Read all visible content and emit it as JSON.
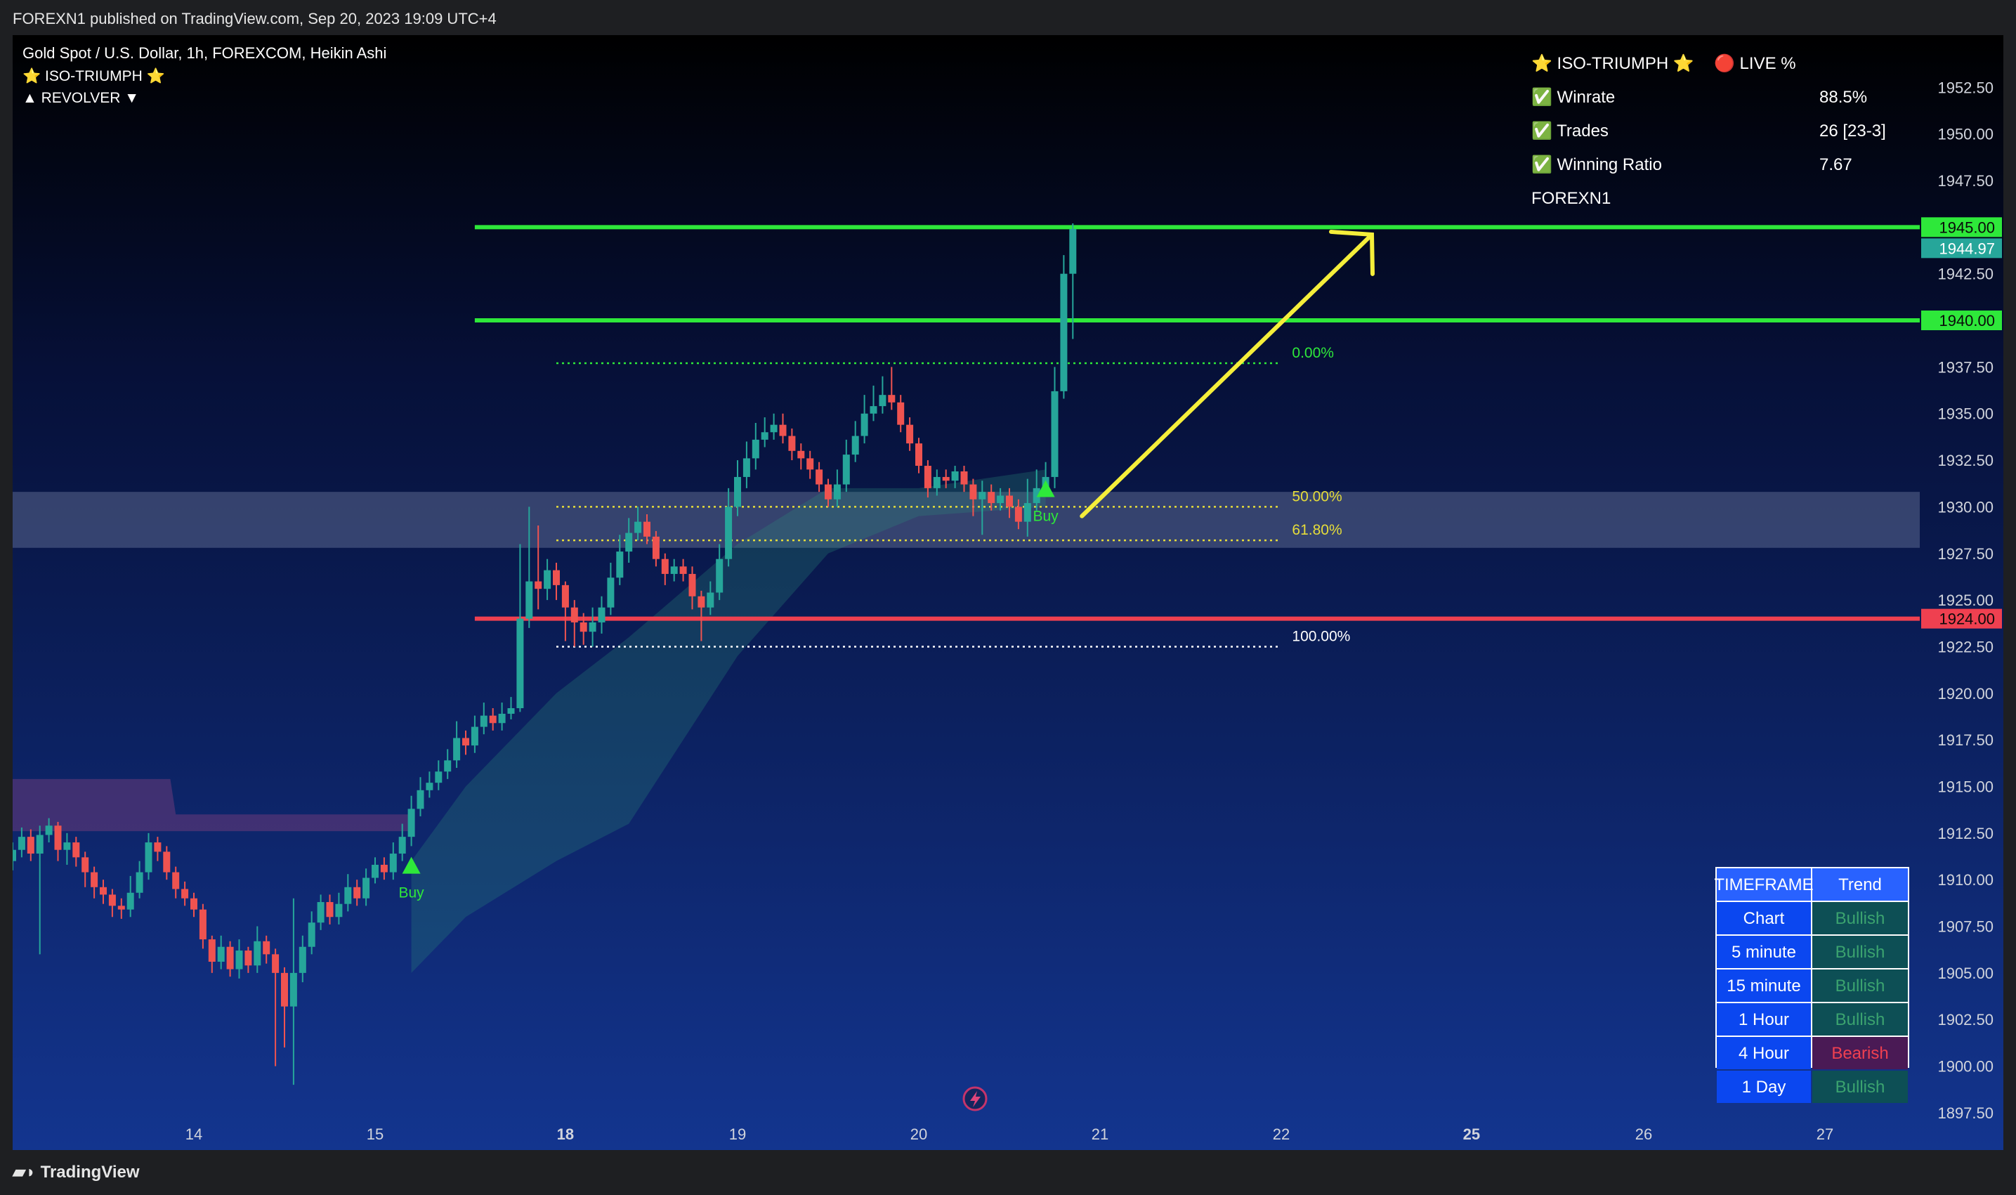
{
  "header": {
    "publish_line": "FOREXN1 published on TradingView.com, Sep 20, 2023 19:09 UTC+4"
  },
  "legend": {
    "symbol_line": "Gold Spot / U.S. Dollar, 1h, FOREXCOM, Heikin Ashi",
    "indicator1": "⭐ ISO-TRIUMPH ⭐",
    "indicator2": "▲ REVOLVER ▼"
  },
  "stats_panel": {
    "title": "⭐ ISO-TRIUMPH ⭐",
    "live": "🔴 LIVE %",
    "rows": [
      {
        "label": "✅ Winrate",
        "value": "88.5%"
      },
      {
        "label": "✅ Trades",
        "value": "26 [23-3]"
      },
      {
        "label": "✅ Winning Ratio",
        "value": "7.67"
      }
    ],
    "author": "FOREXN1"
  },
  "trend_table": {
    "headers": [
      "TIMEFRAME",
      "Trend"
    ],
    "rows": [
      {
        "tf": "Chart",
        "trend": "Bullish"
      },
      {
        "tf": "5 minute",
        "trend": "Bullish"
      },
      {
        "tf": "15 minute",
        "trend": "Bullish"
      },
      {
        "tf": "1 Hour",
        "trend": "Bullish"
      },
      {
        "tf": "4 Hour",
        "trend": "Bearish"
      },
      {
        "tf": "1 Day",
        "trend": "Bullish"
      }
    ]
  },
  "chart_data": {
    "type": "candlestick",
    "symbol": "Gold Spot / U.S. Dollar",
    "timeframe": "1h",
    "chart_style": "Heikin Ashi",
    "ylim": [
      1895.5,
      1955
    ],
    "y_ticks": [
      1897.5,
      1900,
      1902.5,
      1905,
      1907.5,
      1910,
      1912.5,
      1915,
      1917.5,
      1920,
      1922.5,
      1925,
      1927.5,
      1930,
      1932.5,
      1935,
      1937.5,
      1940,
      1942.5,
      1945,
      1947.5,
      1950,
      1952.5
    ],
    "x_ticks": [
      {
        "label": "14",
        "day": 14,
        "bold": false
      },
      {
        "label": "15",
        "day": 15,
        "bold": false
      },
      {
        "label": "18",
        "day": 16.05,
        "bold": true
      },
      {
        "label": "19",
        "day": 17,
        "bold": false
      },
      {
        "label": "20",
        "day": 18,
        "bold": false
      },
      {
        "label": "21",
        "day": 19,
        "bold": false
      },
      {
        "label": "22",
        "day": 20,
        "bold": false
      },
      {
        "label": "25",
        "day": 21.05,
        "bold": true
      },
      {
        "label": "26",
        "day": 22,
        "bold": false
      },
      {
        "label": "27",
        "day": 23,
        "bold": false
      }
    ],
    "price_levels": [
      {
        "price": 1945.0,
        "label": "1945.00",
        "color": "#2ee83a",
        "line": true,
        "x_start_day": 15.55
      },
      {
        "price": 1944.97,
        "label": "1944.97",
        "color": "#26a69a",
        "line": false
      },
      {
        "price": 1940.0,
        "label": "1940.00",
        "color": "#2ee83a",
        "line": true,
        "x_start_day": 15.55
      },
      {
        "price": 1924.0,
        "label": "1924.00",
        "color": "#ef4050",
        "line": true,
        "x_start_day": 15.55
      }
    ],
    "fib_levels": [
      {
        "ratio": "0.00%",
        "price": 1937.7,
        "color": "#2ee83a"
      },
      {
        "ratio": "50.00%",
        "price": 1930.0,
        "color": "#e6dd3a"
      },
      {
        "ratio": "61.80%",
        "price": 1928.2,
        "color": "#e6dd3a"
      },
      {
        "ratio": "100.00%",
        "price": 1922.5,
        "color": "#ffffff"
      }
    ],
    "fib_x_range": [
      16.0,
      19.99
    ],
    "zone": {
      "low": 1927.8,
      "high": 1930.8,
      "color": "#8a95b8"
    },
    "signals": [
      {
        "type": "Buy",
        "day": 15.2,
        "price": 1910.7
      },
      {
        "type": "Buy",
        "day": 18.7,
        "price": 1930.9
      }
    ],
    "arrow": {
      "from": {
        "day": 18.9,
        "price": 1929.5
      },
      "to": {
        "day": 20.5,
        "price": 1944.6
      },
      "color": "#f5ee3a"
    },
    "cloud_purple": [
      {
        "day": 13.0,
        "top": 1915.4,
        "bottom": 1912.6
      },
      {
        "day": 13.87,
        "top": 1915.4,
        "bottom": 1912.6
      },
      {
        "day": 13.9,
        "top": 1913.5,
        "bottom": 1912.6
      },
      {
        "day": 15.2,
        "top": 1913.5,
        "bottom": 1912.6
      }
    ],
    "cloud_teal": [
      {
        "day": 15.2,
        "top": 1911,
        "bottom": 1905
      },
      {
        "day": 15.5,
        "top": 1915,
        "bottom": 1908
      },
      {
        "day": 16.0,
        "top": 1920,
        "bottom": 1911
      },
      {
        "day": 16.4,
        "top": 1923,
        "bottom": 1913
      },
      {
        "day": 17.0,
        "top": 1928,
        "bottom": 1922
      },
      {
        "day": 17.5,
        "top": 1931,
        "bottom": 1927.5
      },
      {
        "day": 18.0,
        "top": 1931,
        "bottom": 1929.5
      },
      {
        "day": 18.7,
        "top": 1932,
        "bottom": 1930
      }
    ],
    "candles": [
      {
        "d": 13.0,
        "o": 1911.0,
        "c": 1911.6,
        "h": 1912.0,
        "l": 1910.5
      },
      {
        "d": 13.05,
        "o": 1911.6,
        "c": 1912.3,
        "h": 1912.8,
        "l": 1911.2
      },
      {
        "d": 13.1,
        "o": 1912.3,
        "c": 1911.4,
        "h": 1912.7,
        "l": 1911.0
      },
      {
        "d": 13.15,
        "o": 1911.4,
        "c": 1912.4,
        "h": 1912.9,
        "l": 1906.0
      },
      {
        "d": 13.2,
        "o": 1912.4,
        "c": 1912.9,
        "h": 1913.3,
        "l": 1912.0
      },
      {
        "d": 13.25,
        "o": 1912.9,
        "c": 1911.6,
        "h": 1913.1,
        "l": 1911.0
      },
      {
        "d": 13.3,
        "o": 1911.6,
        "c": 1912.0,
        "h": 1912.5,
        "l": 1910.8
      },
      {
        "d": 13.35,
        "o": 1912.0,
        "c": 1911.2,
        "h": 1912.3,
        "l": 1910.7
      },
      {
        "d": 13.4,
        "o": 1911.2,
        "c": 1910.4,
        "h": 1911.5,
        "l": 1909.6
      },
      {
        "d": 13.45,
        "o": 1910.4,
        "c": 1909.6,
        "h": 1910.7,
        "l": 1909.0
      },
      {
        "d": 13.5,
        "o": 1909.6,
        "c": 1909.2,
        "h": 1910.0,
        "l": 1908.7
      },
      {
        "d": 13.55,
        "o": 1909.2,
        "c": 1908.6,
        "h": 1909.5,
        "l": 1908.0
      },
      {
        "d": 13.6,
        "o": 1908.6,
        "c": 1908.4,
        "h": 1909.0,
        "l": 1907.9
      },
      {
        "d": 13.65,
        "o": 1908.4,
        "c": 1909.3,
        "h": 1910.2,
        "l": 1908.0
      },
      {
        "d": 13.7,
        "o": 1909.3,
        "c": 1910.4,
        "h": 1911.0,
        "l": 1909.0
      },
      {
        "d": 13.75,
        "o": 1910.4,
        "c": 1912.0,
        "h": 1912.5,
        "l": 1910.0
      },
      {
        "d": 13.8,
        "o": 1912.0,
        "c": 1911.5,
        "h": 1912.3,
        "l": 1911.0
      },
      {
        "d": 13.85,
        "o": 1911.5,
        "c": 1910.4,
        "h": 1911.8,
        "l": 1910.0
      },
      {
        "d": 13.9,
        "o": 1910.4,
        "c": 1909.5,
        "h": 1910.7,
        "l": 1909.0
      },
      {
        "d": 13.95,
        "o": 1909.5,
        "c": 1909.0,
        "h": 1909.9,
        "l": 1908.6
      },
      {
        "d": 14.0,
        "o": 1909.0,
        "c": 1908.4,
        "h": 1909.3,
        "l": 1908.0
      },
      {
        "d": 14.05,
        "o": 1908.4,
        "c": 1906.8,
        "h": 1908.7,
        "l": 1906.3
      },
      {
        "d": 14.1,
        "o": 1906.8,
        "c": 1905.6,
        "h": 1907.0,
        "l": 1905.0
      },
      {
        "d": 14.15,
        "o": 1905.6,
        "c": 1906.4,
        "h": 1907.0,
        "l": 1905.2
      },
      {
        "d": 14.2,
        "o": 1906.4,
        "c": 1905.2,
        "h": 1906.7,
        "l": 1904.8
      },
      {
        "d": 14.25,
        "o": 1905.2,
        "c": 1906.2,
        "h": 1906.8,
        "l": 1904.7
      },
      {
        "d": 14.3,
        "o": 1906.2,
        "c": 1905.4,
        "h": 1906.4,
        "l": 1905.0
      },
      {
        "d": 14.35,
        "o": 1905.4,
        "c": 1906.7,
        "h": 1907.5,
        "l": 1905.0
      },
      {
        "d": 14.4,
        "o": 1906.7,
        "c": 1906.0,
        "h": 1907.0,
        "l": 1905.5
      },
      {
        "d": 14.45,
        "o": 1906.0,
        "c": 1905.0,
        "h": 1906.3,
        "l": 1900.0
      },
      {
        "d": 14.5,
        "o": 1905.0,
        "c": 1903.2,
        "h": 1905.3,
        "l": 1901.0
      },
      {
        "d": 14.55,
        "o": 1903.2,
        "c": 1905.0,
        "h": 1909.0,
        "l": 1899.0
      },
      {
        "d": 14.6,
        "o": 1905.0,
        "c": 1906.4,
        "h": 1907.0,
        "l": 1904.5
      },
      {
        "d": 14.65,
        "o": 1906.4,
        "c": 1907.7,
        "h": 1908.3,
        "l": 1906.0
      },
      {
        "d": 14.7,
        "o": 1907.7,
        "c": 1908.8,
        "h": 1909.2,
        "l": 1907.3
      },
      {
        "d": 14.75,
        "o": 1908.8,
        "c": 1908.0,
        "h": 1909.2,
        "l": 1907.6
      },
      {
        "d": 14.8,
        "o": 1908.0,
        "c": 1908.7,
        "h": 1909.3,
        "l": 1907.6
      },
      {
        "d": 14.85,
        "o": 1908.7,
        "c": 1909.6,
        "h": 1910.3,
        "l": 1908.3
      },
      {
        "d": 14.9,
        "o": 1909.6,
        "c": 1909.0,
        "h": 1910.0,
        "l": 1908.6
      },
      {
        "d": 14.95,
        "o": 1909.0,
        "c": 1910.1,
        "h": 1910.6,
        "l": 1908.6
      },
      {
        "d": 15.0,
        "o": 1910.1,
        "c": 1910.8,
        "h": 1911.2,
        "l": 1909.8
      },
      {
        "d": 15.05,
        "o": 1910.8,
        "c": 1910.4,
        "h": 1911.2,
        "l": 1910.0
      },
      {
        "d": 15.1,
        "o": 1910.4,
        "c": 1911.4,
        "h": 1912.0,
        "l": 1910.0
      },
      {
        "d": 15.15,
        "o": 1911.4,
        "c": 1912.3,
        "h": 1913.0,
        "l": 1911.0
      },
      {
        "d": 15.2,
        "o": 1912.3,
        "c": 1913.8,
        "h": 1914.5,
        "l": 1911.8
      },
      {
        "d": 15.25,
        "o": 1913.8,
        "c": 1914.8,
        "h": 1915.5,
        "l": 1913.4
      },
      {
        "d": 15.3,
        "o": 1914.8,
        "c": 1915.2,
        "h": 1915.8,
        "l": 1914.4
      },
      {
        "d": 15.35,
        "o": 1915.2,
        "c": 1915.8,
        "h": 1916.4,
        "l": 1914.8
      },
      {
        "d": 15.4,
        "o": 1915.8,
        "c": 1916.4,
        "h": 1917.0,
        "l": 1915.4
      },
      {
        "d": 15.45,
        "o": 1916.4,
        "c": 1917.6,
        "h": 1918.5,
        "l": 1916.0
      },
      {
        "d": 15.5,
        "o": 1917.6,
        "c": 1917.2,
        "h": 1918.0,
        "l": 1916.7
      },
      {
        "d": 15.55,
        "o": 1917.2,
        "c": 1918.2,
        "h": 1918.8,
        "l": 1916.8
      },
      {
        "d": 15.6,
        "o": 1918.2,
        "c": 1918.8,
        "h": 1919.5,
        "l": 1917.8
      },
      {
        "d": 15.65,
        "o": 1918.8,
        "c": 1918.4,
        "h": 1919.2,
        "l": 1918.0
      },
      {
        "d": 15.7,
        "o": 1918.4,
        "c": 1918.9,
        "h": 1919.5,
        "l": 1918.0
      },
      {
        "d": 15.75,
        "o": 1918.9,
        "c": 1919.2,
        "h": 1919.8,
        "l": 1918.6
      },
      {
        "d": 15.8,
        "o": 1919.2,
        "c": 1924.0,
        "h": 1928.0,
        "l": 1919.0
      },
      {
        "d": 15.85,
        "o": 1924.0,
        "c": 1926.0,
        "h": 1930.0,
        "l": 1923.5
      },
      {
        "d": 15.9,
        "o": 1926.0,
        "c": 1925.6,
        "h": 1929.0,
        "l": 1924.5
      },
      {
        "d": 15.95,
        "o": 1925.6,
        "c": 1926.6,
        "h": 1927.2,
        "l": 1925.0
      },
      {
        "d": 16.0,
        "o": 1926.6,
        "c": 1925.8,
        "h": 1927.0,
        "l": 1925.0
      },
      {
        "d": 16.05,
        "o": 1925.8,
        "c": 1924.6,
        "h": 1926.0,
        "l": 1922.8
      },
      {
        "d": 16.1,
        "o": 1924.6,
        "c": 1923.8,
        "h": 1925.0,
        "l": 1922.5
      },
      {
        "d": 16.15,
        "o": 1923.8,
        "c": 1923.3,
        "h": 1924.3,
        "l": 1922.6
      },
      {
        "d": 16.2,
        "o": 1923.3,
        "c": 1923.8,
        "h": 1924.6,
        "l": 1922.5
      },
      {
        "d": 16.25,
        "o": 1923.8,
        "c": 1924.6,
        "h": 1925.2,
        "l": 1923.2
      },
      {
        "d": 16.3,
        "o": 1924.6,
        "c": 1926.2,
        "h": 1927.0,
        "l": 1924.2
      },
      {
        "d": 16.35,
        "o": 1926.2,
        "c": 1927.6,
        "h": 1928.5,
        "l": 1925.8
      },
      {
        "d": 16.4,
        "o": 1927.6,
        "c": 1928.6,
        "h": 1929.4,
        "l": 1927.0
      },
      {
        "d": 16.45,
        "o": 1928.6,
        "c": 1929.2,
        "h": 1930.0,
        "l": 1928.2
      },
      {
        "d": 16.5,
        "o": 1929.2,
        "c": 1928.4,
        "h": 1929.6,
        "l": 1928.0
      },
      {
        "d": 16.55,
        "o": 1928.4,
        "c": 1927.2,
        "h": 1928.7,
        "l": 1926.8
      },
      {
        "d": 16.6,
        "o": 1927.2,
        "c": 1926.4,
        "h": 1927.5,
        "l": 1925.8
      },
      {
        "d": 16.65,
        "o": 1926.4,
        "c": 1926.8,
        "h": 1927.2,
        "l": 1926.0
      },
      {
        "d": 16.7,
        "o": 1926.8,
        "c": 1926.4,
        "h": 1927.2,
        "l": 1926.0
      },
      {
        "d": 16.75,
        "o": 1926.4,
        "c": 1925.2,
        "h": 1926.8,
        "l": 1924.5
      },
      {
        "d": 16.8,
        "o": 1925.2,
        "c": 1924.6,
        "h": 1925.5,
        "l": 1922.8
      },
      {
        "d": 16.85,
        "o": 1924.6,
        "c": 1925.4,
        "h": 1926.0,
        "l": 1924.2
      },
      {
        "d": 16.9,
        "o": 1925.4,
        "c": 1927.2,
        "h": 1928.0,
        "l": 1925.0
      },
      {
        "d": 16.95,
        "o": 1927.2,
        "c": 1930.0,
        "h": 1931.0,
        "l": 1926.8
      },
      {
        "d": 17.0,
        "o": 1930.0,
        "c": 1931.6,
        "h": 1932.5,
        "l": 1929.5
      },
      {
        "d": 17.05,
        "o": 1931.6,
        "c": 1932.6,
        "h": 1933.5,
        "l": 1931.0
      },
      {
        "d": 17.1,
        "o": 1932.6,
        "c": 1933.6,
        "h": 1934.5,
        "l": 1932.0
      },
      {
        "d": 17.15,
        "o": 1933.6,
        "c": 1934.0,
        "h": 1934.8,
        "l": 1933.2
      },
      {
        "d": 17.2,
        "o": 1934.0,
        "c": 1934.4,
        "h": 1935.0,
        "l": 1933.6
      },
      {
        "d": 17.25,
        "o": 1934.4,
        "c": 1933.8,
        "h": 1935.0,
        "l": 1933.4
      },
      {
        "d": 17.3,
        "o": 1933.8,
        "c": 1933.0,
        "h": 1934.2,
        "l": 1932.5
      },
      {
        "d": 17.35,
        "o": 1933.0,
        "c": 1932.6,
        "h": 1933.4,
        "l": 1932.0
      },
      {
        "d": 17.4,
        "o": 1932.6,
        "c": 1932.0,
        "h": 1933.0,
        "l": 1931.5
      },
      {
        "d": 17.45,
        "o": 1932.0,
        "c": 1931.2,
        "h": 1932.4,
        "l": 1930.8
      },
      {
        "d": 17.5,
        "o": 1931.2,
        "c": 1930.4,
        "h": 1931.5,
        "l": 1930.0
      },
      {
        "d": 17.55,
        "o": 1930.4,
        "c": 1931.2,
        "h": 1932.0,
        "l": 1930.0
      },
      {
        "d": 17.6,
        "o": 1931.2,
        "c": 1932.8,
        "h": 1933.6,
        "l": 1930.8
      },
      {
        "d": 17.65,
        "o": 1932.8,
        "c": 1933.8,
        "h": 1934.6,
        "l": 1932.4
      },
      {
        "d": 17.7,
        "o": 1933.8,
        "c": 1935.0,
        "h": 1936.0,
        "l": 1933.4
      },
      {
        "d": 17.75,
        "o": 1935.0,
        "c": 1935.4,
        "h": 1936.5,
        "l": 1934.6
      },
      {
        "d": 17.8,
        "o": 1935.4,
        "c": 1936.0,
        "h": 1937.0,
        "l": 1935.0
      },
      {
        "d": 17.85,
        "o": 1936.0,
        "c": 1935.6,
        "h": 1937.5,
        "l": 1935.2
      },
      {
        "d": 17.9,
        "o": 1935.6,
        "c": 1934.4,
        "h": 1936.0,
        "l": 1934.0
      },
      {
        "d": 17.95,
        "o": 1934.4,
        "c": 1933.4,
        "h": 1934.8,
        "l": 1933.0
      },
      {
        "d": 18.0,
        "o": 1933.4,
        "c": 1932.2,
        "h": 1933.7,
        "l": 1931.8
      },
      {
        "d": 18.05,
        "o": 1932.2,
        "c": 1931.0,
        "h": 1932.5,
        "l": 1930.5
      },
      {
        "d": 18.1,
        "o": 1931.0,
        "c": 1931.6,
        "h": 1932.0,
        "l": 1930.6
      },
      {
        "d": 18.15,
        "o": 1931.6,
        "c": 1931.4,
        "h": 1932.0,
        "l": 1931.0
      },
      {
        "d": 18.2,
        "o": 1931.4,
        "c": 1931.9,
        "h": 1932.2,
        "l": 1931.0
      },
      {
        "d": 18.25,
        "o": 1931.9,
        "c": 1931.2,
        "h": 1932.2,
        "l": 1930.8
      },
      {
        "d": 18.3,
        "o": 1931.2,
        "c": 1930.4,
        "h": 1931.5,
        "l": 1929.5
      },
      {
        "d": 18.35,
        "o": 1930.4,
        "c": 1930.8,
        "h": 1931.4,
        "l": 1928.5
      },
      {
        "d": 18.4,
        "o": 1930.8,
        "c": 1930.2,
        "h": 1931.2,
        "l": 1929.8
      },
      {
        "d": 18.45,
        "o": 1930.2,
        "c": 1930.6,
        "h": 1931.0,
        "l": 1929.8
      },
      {
        "d": 18.5,
        "o": 1930.6,
        "c": 1930.0,
        "h": 1931.0,
        "l": 1929.4
      },
      {
        "d": 18.55,
        "o": 1930.0,
        "c": 1929.2,
        "h": 1930.4,
        "l": 1928.8
      },
      {
        "d": 18.6,
        "o": 1929.2,
        "c": 1930.2,
        "h": 1931.5,
        "l": 1928.4
      },
      {
        "d": 18.65,
        "o": 1930.2,
        "c": 1931.0,
        "h": 1932.0,
        "l": 1929.8
      },
      {
        "d": 18.7,
        "o": 1931.0,
        "c": 1931.6,
        "h": 1932.4,
        "l": 1930.6
      },
      {
        "d": 18.75,
        "o": 1931.6,
        "c": 1936.2,
        "h": 1937.5,
        "l": 1931.0
      },
      {
        "d": 18.8,
        "o": 1936.2,
        "c": 1942.5,
        "h": 1943.5,
        "l": 1935.8
      },
      {
        "d": 18.85,
        "o": 1942.5,
        "c": 1944.9,
        "h": 1945.2,
        "l": 1939.0
      }
    ]
  }
}
